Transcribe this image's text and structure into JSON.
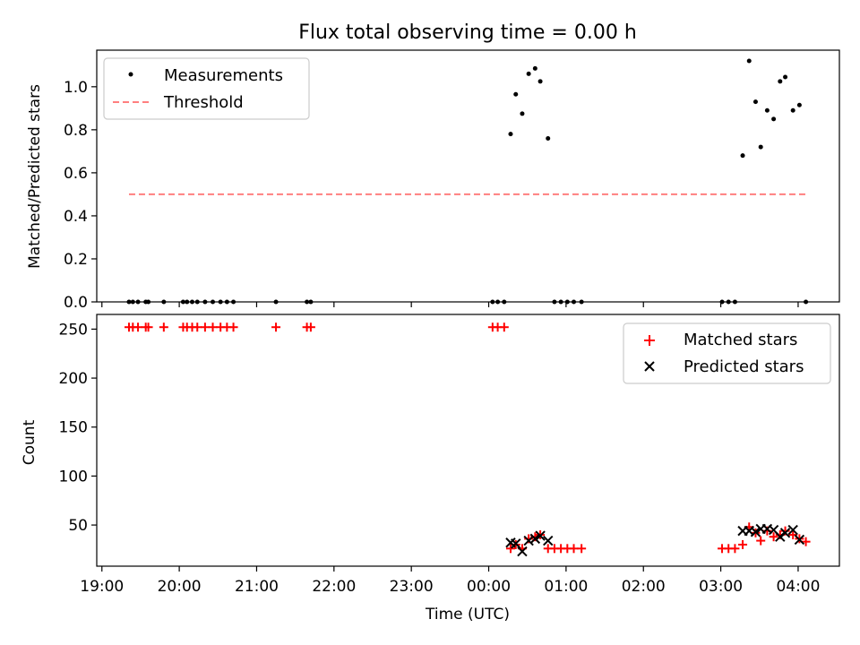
{
  "chart_data": {
    "type": "scatter",
    "title": "Flux total observing time = 0.00 h",
    "xlabel": "Time (UTC)",
    "x_range": [
      "18:56",
      "04:32"
    ],
    "x_ticks": [
      "19:00",
      "20:00",
      "21:00",
      "22:00",
      "23:00",
      "00:00",
      "01:00",
      "02:00",
      "03:00",
      "04:00"
    ],
    "panels": [
      {
        "id": "ratio",
        "ylabel": "Matched/Predicted stars",
        "ylim": [
          0,
          1.17
        ],
        "y_ticks": [
          "0.0",
          "0.2",
          "0.4",
          "0.6",
          "0.8",
          "1.0"
        ],
        "legend_position": "upper left",
        "series": [
          {
            "name": "Measurements",
            "marker": "dot",
            "color": "#000000",
            "points": [
              [
                "19:21",
                0
              ],
              [
                "19:24",
                0
              ],
              [
                "19:28",
                0
              ],
              [
                "19:34",
                0
              ],
              [
                "19:36",
                0
              ],
              [
                "19:48",
                0
              ],
              [
                "20:03",
                0
              ],
              [
                "20:06",
                0
              ],
              [
                "20:10",
                0
              ],
              [
                "20:14",
                0
              ],
              [
                "20:20",
                0
              ],
              [
                "20:26",
                0
              ],
              [
                "20:32",
                0
              ],
              [
                "20:37",
                0
              ],
              [
                "20:42",
                0
              ],
              [
                "21:15",
                0
              ],
              [
                "21:39",
                0
              ],
              [
                "21:42",
                0
              ],
              [
                "00:03",
                0
              ],
              [
                "00:07",
                0
              ],
              [
                "00:12",
                0
              ],
              [
                "00:17",
                0.78
              ],
              [
                "00:21",
                0.965
              ],
              [
                "00:26",
                0.875
              ],
              [
                "00:31",
                1.06
              ],
              [
                "00:36",
                1.085
              ],
              [
                "00:40",
                1.025
              ],
              [
                "00:46",
                0.76
              ],
              [
                "00:51",
                0
              ],
              [
                "00:56",
                0
              ],
              [
                "01:01",
                0
              ],
              [
                "01:06",
                0
              ],
              [
                "01:12",
                0
              ],
              [
                "03:01",
                0
              ],
              [
                "03:06",
                0
              ],
              [
                "03:11",
                0
              ],
              [
                "03:17",
                0.68
              ],
              [
                "03:22",
                1.12
              ],
              [
                "03:27",
                0.93
              ],
              [
                "03:31",
                0.72
              ],
              [
                "03:36",
                0.89
              ],
              [
                "03:41",
                0.85
              ],
              [
                "03:46",
                1.025
              ],
              [
                "03:50",
                1.045
              ],
              [
                "03:56",
                0.89
              ],
              [
                "04:01",
                0.915
              ],
              [
                "04:06",
                0
              ]
            ]
          },
          {
            "name": "Threshold",
            "marker": "dashed-line",
            "color": "#ff7f7f",
            "points": [
              [
                "19:21",
                0.5
              ],
              [
                "04:07",
                0.5
              ]
            ]
          }
        ]
      },
      {
        "id": "counts",
        "ylabel": "Count",
        "ylim": [
          8,
          265
        ],
        "y_ticks": [
          "50",
          "100",
          "150",
          "200",
          "250"
        ],
        "legend_position": "upper right",
        "series": [
          {
            "name": "Matched stars",
            "marker": "plus",
            "color": "#ff0000",
            "points": [
              [
                "19:21",
                252
              ],
              [
                "19:24",
                252
              ],
              [
                "19:28",
                252
              ],
              [
                "19:34",
                252
              ],
              [
                "19:36",
                252
              ],
              [
                "19:48",
                252
              ],
              [
                "20:03",
                252
              ],
              [
                "20:06",
                252
              ],
              [
                "20:10",
                252
              ],
              [
                "20:14",
                252
              ],
              [
                "20:20",
                252
              ],
              [
                "20:26",
                252
              ],
              [
                "20:32",
                252
              ],
              [
                "20:37",
                252
              ],
              [
                "20:42",
                252
              ],
              [
                "21:15",
                252
              ],
              [
                "21:39",
                252
              ],
              [
                "21:42",
                252
              ],
              [
                "00:03",
                252
              ],
              [
                "00:07",
                252
              ],
              [
                "00:12",
                252
              ],
              [
                "00:17",
                26
              ],
              [
                "00:21",
                30
              ],
              [
                "00:26",
                26
              ],
              [
                "00:31",
                36
              ],
              [
                "00:36",
                38
              ],
              [
                "00:40",
                40
              ],
              [
                "00:46",
                26
              ],
              [
                "00:51",
                26
              ],
              [
                "00:56",
                26
              ],
              [
                "01:01",
                26
              ],
              [
                "01:06",
                26
              ],
              [
                "01:12",
                26
              ],
              [
                "03:01",
                26
              ],
              [
                "03:06",
                26
              ],
              [
                "03:11",
                26
              ],
              [
                "03:17",
                30
              ],
              [
                "03:22",
                48
              ],
              [
                "03:27",
                42
              ],
              [
                "03:31",
                34
              ],
              [
                "03:36",
                44
              ],
              [
                "03:41",
                38
              ],
              [
                "03:46",
                40
              ],
              [
                "03:50",
                44
              ],
              [
                "03:56",
                40
              ],
              [
                "04:01",
                36
              ],
              [
                "04:06",
                33
              ]
            ]
          },
          {
            "name": "Predicted stars",
            "marker": "x",
            "color": "#000000",
            "points": [
              [
                "00:17",
                32
              ],
              [
                "00:21",
                31
              ],
              [
                "00:26",
                23
              ],
              [
                "00:31",
                34
              ],
              [
                "00:36",
                36
              ],
              [
                "00:40",
                39
              ],
              [
                "00:46",
                34
              ],
              [
                "03:17",
                44
              ],
              [
                "03:22",
                44
              ],
              [
                "03:27",
                43
              ],
              [
                "03:31",
                46
              ],
              [
                "03:36",
                46
              ],
              [
                "03:41",
                45
              ],
              [
                "03:46",
                38
              ],
              [
                "03:50",
                42
              ],
              [
                "03:56",
                45
              ],
              [
                "04:01",
                35
              ]
            ]
          }
        ]
      }
    ]
  }
}
